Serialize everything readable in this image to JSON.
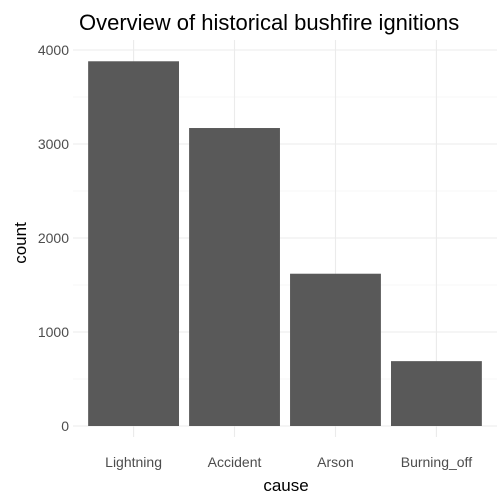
{
  "chart_data": {
    "type": "bar",
    "title": "Overview of historical bushfire ignitions",
    "xlabel": "cause",
    "ylabel": "count",
    "categories": [
      "Lightning",
      "Accident",
      "Arson",
      "Burning_off"
    ],
    "values": [
      3880,
      3170,
      1620,
      690
    ],
    "ylim": [
      0,
      4000
    ],
    "yticks": [
      0,
      1000,
      2000,
      3000,
      4000
    ],
    "grid": true,
    "legend": "none",
    "colors": {
      "bar": "#595959",
      "grid_major": "#ebebeb",
      "grid_minor": "#f4f4f4",
      "tick_text": "#4d4d4d"
    }
  }
}
